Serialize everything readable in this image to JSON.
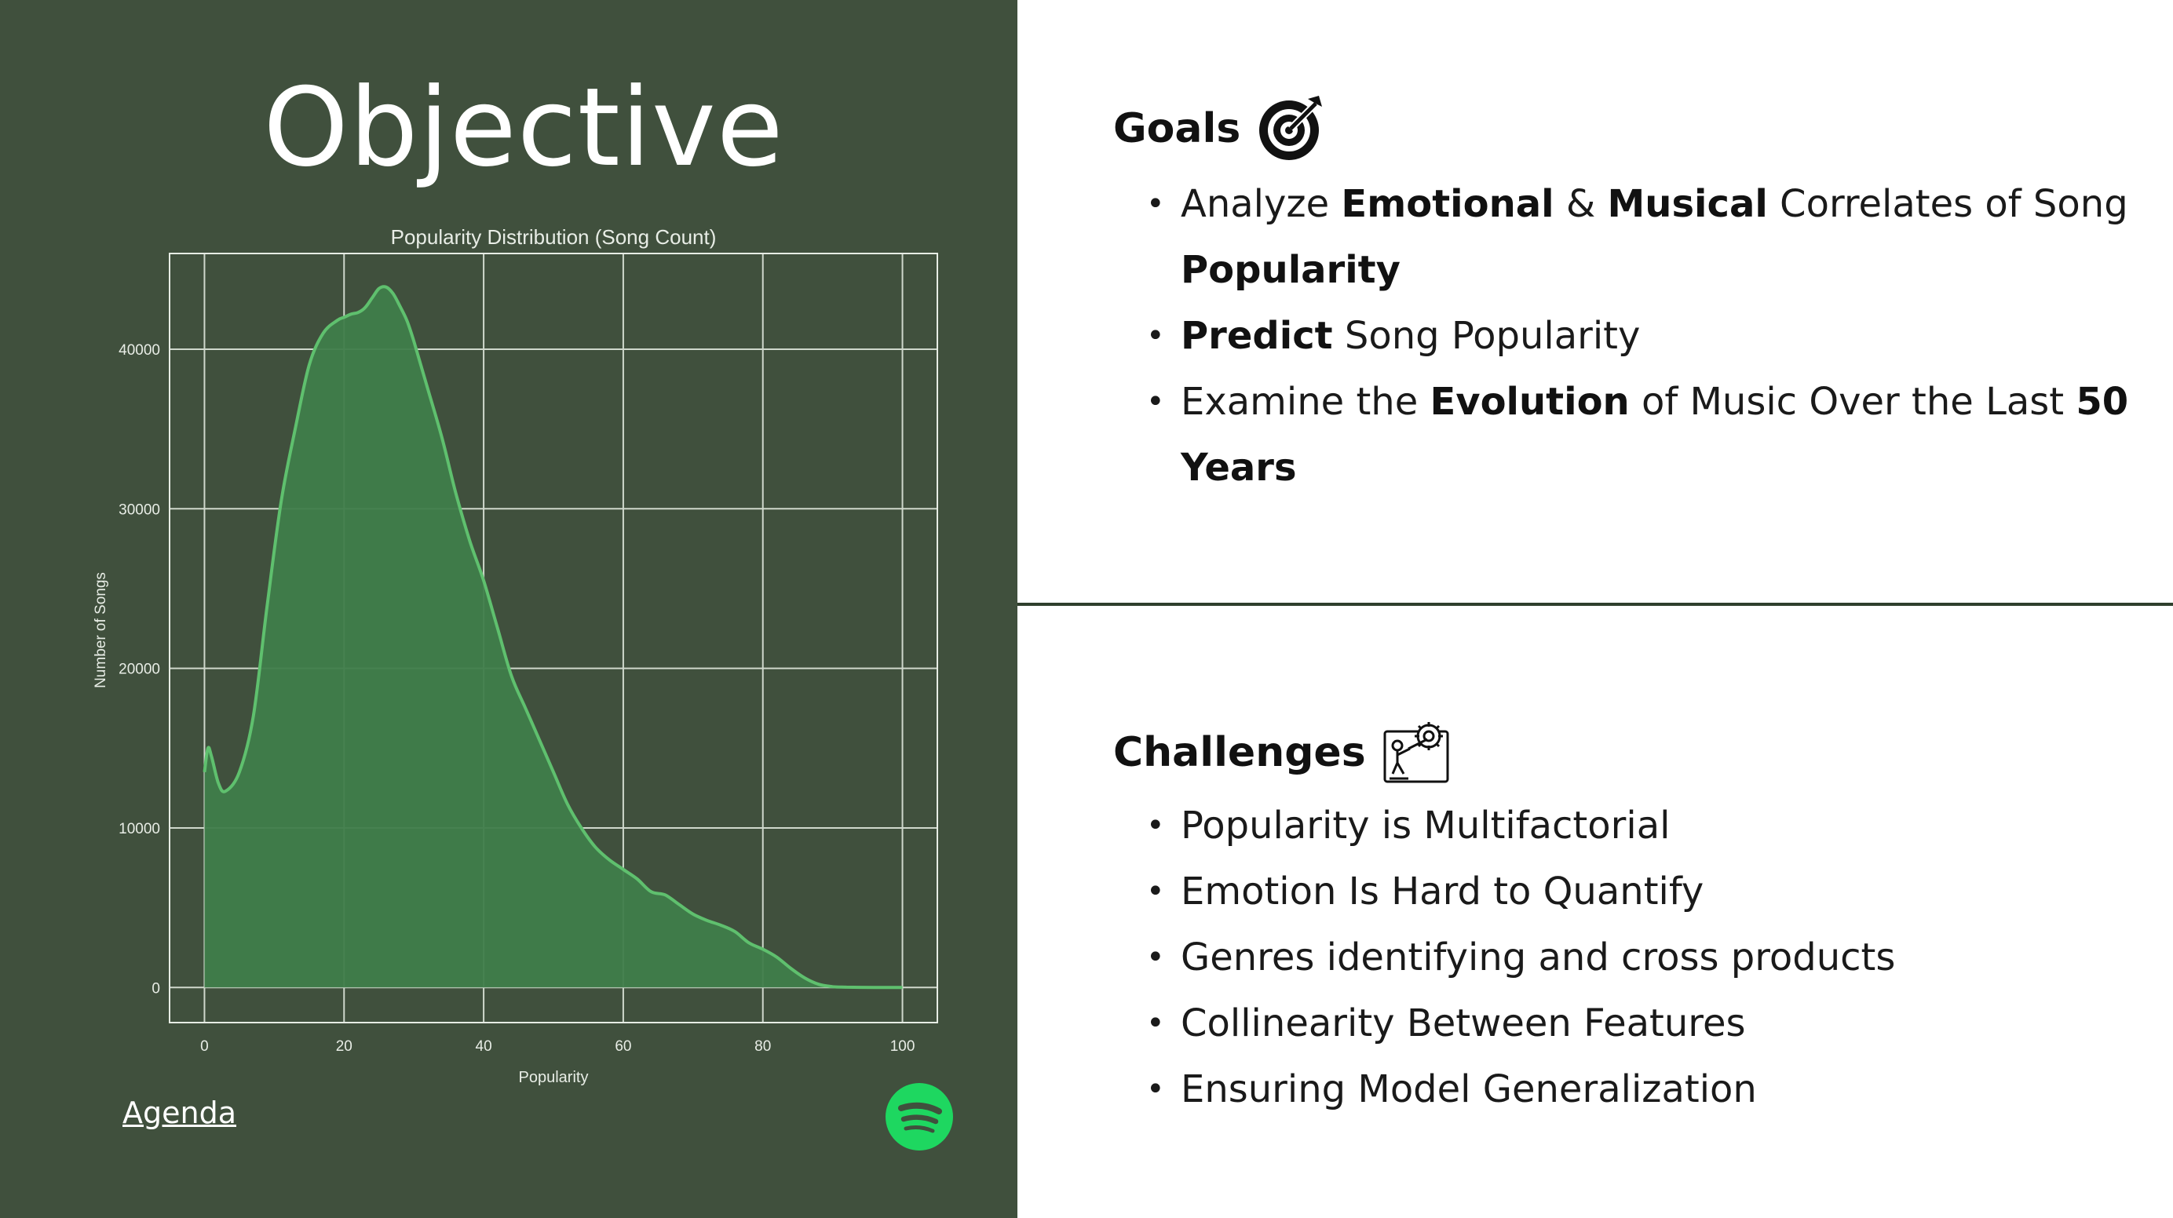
{
  "slide": {
    "title": "Objective",
    "agenda_link": "Agenda"
  },
  "chart_data": {
    "type": "area",
    "title": "Popularity Distribution (Song Count)",
    "xlabel": "Popularity",
    "ylabel": "Number of Songs",
    "xlim": [
      -5,
      105
    ],
    "ylim": [
      -2200,
      46000
    ],
    "xticks": [
      0,
      20,
      40,
      60,
      80,
      100
    ],
    "yticks": [
      0,
      10000,
      20000,
      30000,
      40000
    ],
    "grid": true,
    "colors": {
      "fill": "#3f7d4a",
      "line": "#5fc06e",
      "grid": "#cfd8cc"
    },
    "series": [
      {
        "x": [
          0,
          0.5,
          1,
          2,
          3,
          5,
          7,
          9,
          11,
          13,
          15,
          17,
          19,
          20,
          21,
          22,
          23,
          24,
          25,
          26,
          27,
          28,
          29,
          30,
          32,
          34,
          36,
          38,
          40,
          42,
          44,
          46,
          48,
          50,
          52,
          54,
          56,
          58,
          60,
          62,
          64,
          66,
          68,
          70,
          72,
          74,
          76,
          78,
          80,
          82,
          84,
          86,
          88,
          90,
          92,
          94,
          96,
          98,
          100
        ],
        "y": [
          13500,
          15000,
          14500,
          12800,
          12300,
          13500,
          17000,
          24000,
          30500,
          35000,
          39000,
          41000,
          41800,
          42000,
          42200,
          42300,
          42600,
          43200,
          43800,
          43900,
          43500,
          42700,
          41800,
          40500,
          37500,
          34500,
          31000,
          28000,
          25500,
          22500,
          19500,
          17500,
          15500,
          13500,
          11500,
          10000,
          8800,
          8000,
          7400,
          6800,
          6000,
          5800,
          5200,
          4600,
          4200,
          3900,
          3500,
          2800,
          2400,
          1900,
          1200,
          600,
          200,
          50,
          20,
          10,
          5,
          0,
          0
        ]
      }
    ]
  },
  "goals": {
    "heading": "Goals",
    "icon": "target-icon",
    "items": [
      [
        "Analyze ",
        "Emotional",
        " & ",
        "Musical",
        " Correlates of Song ",
        "Popularity",
        ""
      ],
      [
        "",
        "Predict",
        " Song Popularity"
      ],
      [
        "Examine the ",
        "Evolution",
        " of Music Over the Last ",
        "50 Years",
        ""
      ]
    ]
  },
  "challenges": {
    "heading": "Challenges",
    "icon": "gear-push-icon",
    "items": [
      "Popularity is Multifactorial",
      "Emotion Is Hard to Quantify",
      "Genres identifying and cross products",
      "Collinearity Between Features",
      "Ensuring Model Generalization"
    ]
  },
  "spotify_logo": {
    "icon": "spotify-logo-icon",
    "color": "#1ed760"
  }
}
